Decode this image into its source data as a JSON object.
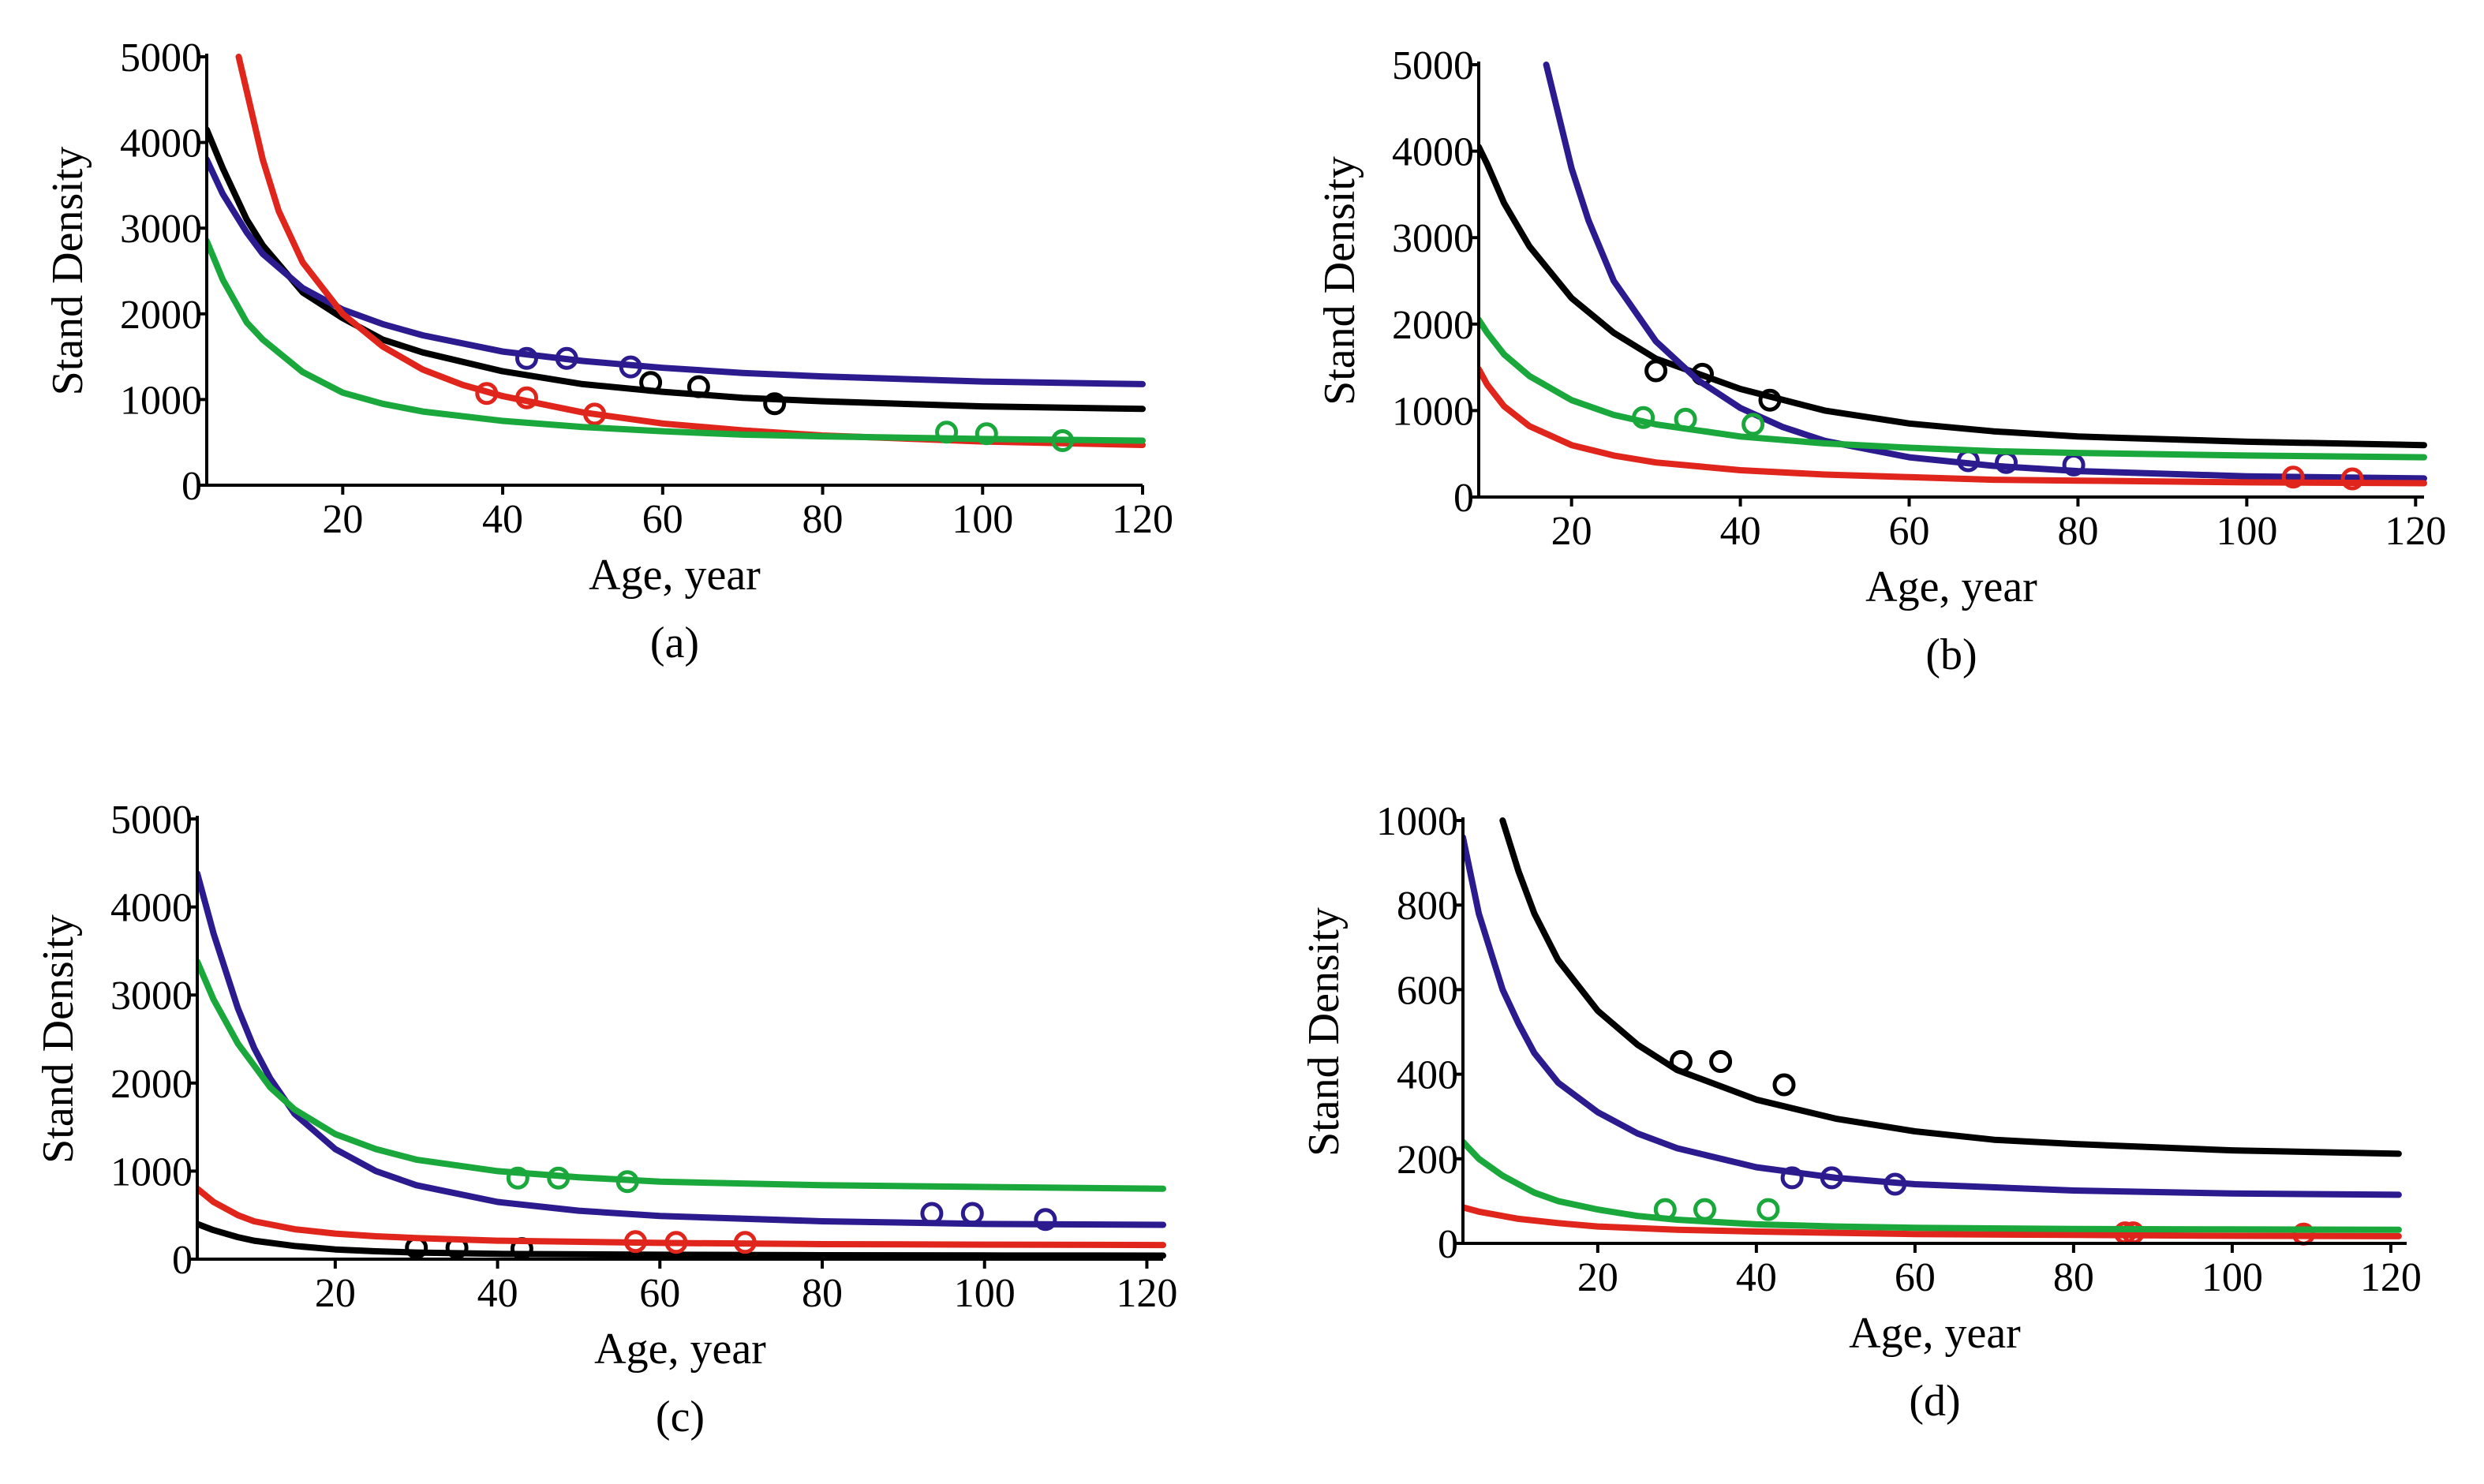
{
  "colors": {
    "black": "#000000",
    "blue": "#2b1b8f",
    "red": "#e0261c",
    "green": "#1aa83c"
  },
  "chart_data": [
    {
      "type": "line",
      "panel_label": "(a)",
      "xlabel": "Age, year",
      "ylabel": "Stand Density",
      "xlim": [
        3,
        120
      ],
      "ylim": [
        0,
        5000
      ],
      "x_ticks": [
        20,
        40,
        60,
        80,
        100,
        120
      ],
      "y_ticks": [
        0,
        1000,
        2000,
        3000,
        4000,
        5000
      ],
      "series": [
        {
          "name": "black",
          "color": "black",
          "x": [
            3,
            5,
            8,
            10,
            15,
            20,
            25,
            30,
            40,
            50,
            60,
            70,
            80,
            100,
            120
          ],
          "y": [
            4150,
            3700,
            3100,
            2800,
            2250,
            1950,
            1700,
            1550,
            1330,
            1180,
            1090,
            1020,
            980,
            920,
            890
          ],
          "points": [
            [
              64.5,
              1150
            ],
            [
              58.5,
              1200
            ],
            [
              74,
              950
            ]
          ]
        },
        {
          "name": "blue",
          "color": "blue",
          "x": [
            3,
            5,
            8,
            10,
            15,
            20,
            25,
            30,
            40,
            50,
            60,
            70,
            80,
            100,
            120
          ],
          "y": [
            3800,
            3400,
            2950,
            2700,
            2300,
            2050,
            1880,
            1750,
            1560,
            1450,
            1370,
            1310,
            1270,
            1210,
            1180
          ],
          "points": [
            [
              43,
              1480
            ],
            [
              48,
              1480
            ],
            [
              56,
              1380
            ]
          ]
        },
        {
          "name": "red",
          "color": "red",
          "x": [
            7,
            8,
            10,
            12,
            15,
            20,
            25,
            30,
            35,
            40,
            50,
            60,
            70,
            80,
            100,
            120
          ],
          "y": [
            5000,
            4600,
            3800,
            3200,
            2600,
            2000,
            1620,
            1350,
            1170,
            1040,
            850,
            720,
            640,
            580,
            510,
            470
          ],
          "points": [
            [
              38,
              1070
            ],
            [
              43,
              1020
            ],
            [
              51.5,
              830
            ]
          ]
        },
        {
          "name": "green",
          "color": "green",
          "x": [
            3,
            5,
            8,
            10,
            15,
            20,
            25,
            30,
            40,
            50,
            60,
            70,
            80,
            100,
            120
          ],
          "y": [
            2850,
            2400,
            1900,
            1700,
            1320,
            1080,
            950,
            860,
            750,
            680,
            630,
            590,
            570,
            540,
            520
          ],
          "points": [
            [
              95.5,
              620
            ],
            [
              100.5,
              600
            ],
            [
              110,
              520
            ]
          ]
        }
      ]
    },
    {
      "type": "line",
      "panel_label": "(b)",
      "xlabel": "Age, year",
      "ylabel": "Stand Density",
      "xlim": [
        9,
        121
      ],
      "ylim": [
        0,
        5000
      ],
      "x_ticks": [
        20,
        40,
        60,
        80,
        100,
        120
      ],
      "y_ticks": [
        0,
        1000,
        2000,
        3000,
        4000,
        5000
      ],
      "series": [
        {
          "name": "black",
          "color": "black",
          "x": [
            9,
            10,
            12,
            15,
            20,
            25,
            30,
            40,
            50,
            60,
            70,
            80,
            100,
            121
          ],
          "y": [
            4050,
            3850,
            3400,
            2900,
            2300,
            1900,
            1600,
            1250,
            1000,
            850,
            760,
            700,
            640,
            600
          ],
          "points": [
            [
              30,
              1460
            ],
            [
              35.5,
              1420
            ],
            [
              43.5,
              1120
            ]
          ]
        },
        {
          "name": "blue",
          "color": "blue",
          "x": [
            17,
            18,
            20,
            22,
            25,
            30,
            35,
            40,
            45,
            50,
            60,
            70,
            80,
            100,
            121
          ],
          "y": [
            5000,
            4600,
            3800,
            3200,
            2500,
            1800,
            1350,
            1030,
            810,
            650,
            460,
            360,
            300,
            240,
            215
          ],
          "points": [
            [
              67,
              420
            ],
            [
              71.5,
              400
            ],
            [
              79.5,
              370
            ]
          ]
        },
        {
          "name": "red",
          "color": "red",
          "x": [
            9,
            10,
            12,
            15,
            20,
            25,
            30,
            40,
            50,
            60,
            70,
            80,
            100,
            121
          ],
          "y": [
            1480,
            1300,
            1050,
            820,
            600,
            480,
            400,
            310,
            260,
            230,
            200,
            190,
            170,
            160
          ],
          "points": [
            [
              105.5,
              230
            ],
            [
              112.5,
              210
            ]
          ]
        },
        {
          "name": "green",
          "color": "green",
          "x": [
            9,
            10,
            12,
            15,
            20,
            25,
            30,
            40,
            50,
            60,
            70,
            80,
            100,
            121
          ],
          "y": [
            2050,
            1900,
            1650,
            1400,
            1120,
            950,
            840,
            700,
            620,
            570,
            530,
            510,
            480,
            460
          ],
          "points": [
            [
              28.5,
              920
            ],
            [
              33.5,
              900
            ],
            [
              41.5,
              840
            ]
          ]
        }
      ]
    },
    {
      "type": "line",
      "panel_label": "(c)",
      "xlabel": "Age, year",
      "ylabel": "Stand Density",
      "xlim": [
        3,
        122
      ],
      "ylim": [
        0,
        5000
      ],
      "x_ticks": [
        20,
        40,
        60,
        80,
        100,
        120
      ],
      "y_ticks": [
        0,
        1000,
        2000,
        3000,
        4000,
        5000
      ],
      "series": [
        {
          "name": "black",
          "color": "black",
          "x": [
            3,
            5,
            8,
            10,
            15,
            20,
            25,
            30,
            40,
            60,
            80,
            100,
            122
          ],
          "y": [
            400,
            330,
            250,
            210,
            150,
            110,
            90,
            75,
            60,
            50,
            45,
            42,
            40
          ],
          "points": [
            [
              30,
              130
            ],
            [
              35,
              130
            ],
            [
              43,
              120
            ]
          ]
        },
        {
          "name": "blue",
          "color": "blue",
          "x": [
            3,
            5,
            8,
            10,
            12,
            15,
            20,
            25,
            30,
            40,
            50,
            60,
            80,
            100,
            122
          ],
          "y": [
            4380,
            3700,
            2850,
            2400,
            2050,
            1650,
            1250,
            1000,
            840,
            650,
            550,
            490,
            430,
            400,
            390
          ],
          "points": [
            [
              93.5,
              520
            ],
            [
              98.5,
              520
            ],
            [
              107.5,
              450
            ]
          ]
        },
        {
          "name": "red",
          "color": "red",
          "x": [
            3,
            5,
            8,
            10,
            15,
            20,
            25,
            30,
            40,
            60,
            80,
            100,
            122
          ],
          "y": [
            800,
            650,
            500,
            430,
            340,
            290,
            260,
            240,
            210,
            185,
            170,
            165,
            160
          ],
          "points": [
            [
              57,
              200
            ],
            [
              62,
              190
            ],
            [
              70.5,
              190
            ]
          ]
        },
        {
          "name": "green",
          "color": "green",
          "x": [
            3,
            5,
            8,
            10,
            12,
            15,
            20,
            25,
            30,
            40,
            50,
            60,
            80,
            100,
            122
          ],
          "y": [
            3380,
            2950,
            2450,
            2200,
            1950,
            1700,
            1420,
            1250,
            1130,
            1000,
            930,
            880,
            840,
            820,
            800
          ],
          "points": [
            [
              42.5,
              920
            ],
            [
              47.5,
              920
            ],
            [
              56,
              880
            ]
          ]
        }
      ]
    },
    {
      "type": "line",
      "panel_label": "(d)",
      "xlabel": "Age, year",
      "ylabel": "Stand Density",
      "xlim": [
        3,
        122
      ],
      "ylim": [
        0,
        1000
      ],
      "x_ticks": [
        20,
        40,
        60,
        80,
        100,
        120
      ],
      "y_ticks": [
        0,
        200,
        400,
        600,
        800,
        1000
      ],
      "series": [
        {
          "name": "black",
          "color": "black",
          "x": [
            8,
            10,
            12,
            15,
            20,
            25,
            30,
            40,
            50,
            60,
            70,
            80,
            100,
            121
          ],
          "y": [
            1000,
            880,
            780,
            670,
            550,
            470,
            410,
            340,
            295,
            265,
            245,
            235,
            220,
            212
          ],
          "points": [
            [
              30.5,
              430
            ],
            [
              35.5,
              430
            ],
            [
              43.5,
              375
            ]
          ]
        },
        {
          "name": "blue",
          "color": "blue",
          "x": [
            3,
            5,
            8,
            10,
            12,
            15,
            20,
            25,
            30,
            40,
            50,
            60,
            80,
            100,
            121
          ],
          "y": [
            960,
            780,
            600,
            520,
            450,
            380,
            310,
            260,
            225,
            180,
            155,
            140,
            125,
            118,
            115
          ],
          "points": [
            [
              44.5,
              155
            ],
            [
              49.5,
              155
            ],
            [
              57.5,
              140
            ]
          ]
        },
        {
          "name": "red",
          "color": "red",
          "x": [
            3,
            5,
            10,
            15,
            20,
            30,
            40,
            60,
            80,
            100,
            121
          ],
          "y": [
            85,
            75,
            58,
            48,
            40,
            32,
            28,
            22,
            20,
            18,
            17
          ],
          "points": [
            [
              86.5,
              25
            ],
            [
              87.5,
              25
            ],
            [
              109,
              22
            ]
          ]
        },
        {
          "name": "green",
          "color": "green",
          "x": [
            3,
            5,
            8,
            10,
            12,
            15,
            20,
            25,
            30,
            40,
            50,
            60,
            80,
            100,
            121
          ],
          "y": [
            240,
            200,
            160,
            140,
            120,
            100,
            80,
            65,
            56,
            45,
            40,
            37,
            34,
            33,
            32
          ],
          "points": [
            [
              28.5,
              80
            ],
            [
              33.5,
              80
            ],
            [
              41.5,
              80
            ]
          ]
        }
      ]
    }
  ]
}
